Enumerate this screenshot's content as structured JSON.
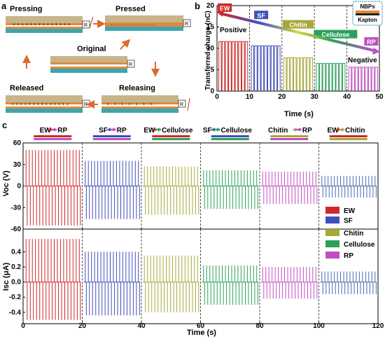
{
  "panel_a": {
    "label": "a",
    "states": {
      "pressing": "Pressing",
      "pressed": "Pressed",
      "original": "Original",
      "released": "Released",
      "releasing": "Releasing"
    },
    "resistor": "R"
  },
  "chart_data": [
    {
      "panel": "b",
      "type": "line",
      "xlabel": "Time (s)",
      "ylabel": "Transferred charge (nC)",
      "xlim": [
        0,
        50
      ],
      "ylim": [
        0,
        20
      ],
      "xticks": [
        "0",
        "10",
        "20",
        "30",
        "40",
        "50"
      ],
      "yticks": [
        "0",
        "5",
        "10",
        "15",
        "20"
      ],
      "grid": false,
      "series_tags": [
        {
          "label": "EW",
          "color": "#cc2a2a"
        },
        {
          "label": "SF",
          "color": "#4050b8"
        },
        {
          "label": "Chitin",
          "color": "#a7a73a"
        },
        {
          "label": "Cellulose",
          "color": "#2ca05a"
        },
        {
          "label": "RP",
          "color": "#c050c0"
        }
      ],
      "series": [
        {
          "label": "EW",
          "x_range": [
            0,
            10
          ],
          "peak": 11.6,
          "color": "#cc2a2a"
        },
        {
          "label": "SF",
          "x_range": [
            10,
            20
          ],
          "peak": 10.6,
          "color": "#4050b8"
        },
        {
          "label": "Chitin",
          "x_range": [
            20,
            30
          ],
          "peak": 7.8,
          "color": "#a7a73a"
        },
        {
          "label": "Cellulose",
          "x_range": [
            30,
            40
          ],
          "peak": 6.5,
          "color": "#2ca05a"
        },
        {
          "label": "RP",
          "x_range": [
            40,
            50
          ],
          "peak": 5.6,
          "color": "#c050c0"
        }
      ],
      "annotations": {
        "positive": "Positive",
        "negative": "Negative"
      },
      "inset": {
        "top": "NBPs",
        "bottom": "Kapton"
      }
    },
    {
      "panel": "c",
      "type": "line",
      "xlabel": "Time (s)",
      "xlim": [
        0,
        120
      ],
      "xticks": [
        "0",
        "20",
        "40",
        "60",
        "80",
        "100",
        "120"
      ],
      "pairs": [
        {
          "left": "EW",
          "right": "RP",
          "left_color": "#cc2a2a",
          "right_color": "#c050c0",
          "x_range": [
            0,
            20
          ],
          "color": "#cc2a2a"
        },
        {
          "left": "SF",
          "right": "RP",
          "left_color": "#4050b8",
          "right_color": "#c050c0",
          "x_range": [
            20,
            40
          ],
          "color": "#4050b8"
        },
        {
          "left": "EW",
          "right": "Cellulose",
          "left_color": "#cc2a2a",
          "right_color": "#2ca05a",
          "x_range": [
            40,
            60
          ],
          "color": "#a7a73a"
        },
        {
          "left": "SF",
          "right": "Cellulose",
          "left_color": "#4050b8",
          "right_color": "#2ca05a",
          "x_range": [
            60,
            80
          ],
          "color": "#2ca05a"
        },
        {
          "left": "Chitin",
          "right": "RP",
          "left_color": "#a7a73a",
          "right_color": "#c050c0",
          "x_range": [
            80,
            100
          ],
          "color": "#c050c0"
        },
        {
          "left": "EW",
          "right": "Chitin",
          "left_color": "#cc2a2a",
          "right_color": "#a7a73a",
          "x_range": [
            100,
            120
          ],
          "color": "#4a6bb0"
        }
      ],
      "voc": {
        "ylabel": "Voc (V)",
        "ylim": [
          -60,
          60
        ],
        "yticks": [
          "60",
          "30",
          "0",
          "-30",
          "-60"
        ],
        "amplitudes": [
          {
            "pos": 50,
            "neg": -55
          },
          {
            "pos": 35,
            "neg": -46
          },
          {
            "pos": 27,
            "neg": -40
          },
          {
            "pos": 22,
            "neg": -32
          },
          {
            "pos": 20,
            "neg": -25
          },
          {
            "pos": 14,
            "neg": -16
          }
        ]
      },
      "isc": {
        "ylabel": "Isc (μA)",
        "ylim": [
          -0.55,
          0.7
        ],
        "yticks": [
          "0.4",
          "0.2",
          "0.0",
          "-0.2",
          "-0.4"
        ],
        "amplitudes": [
          {
            "pos": 0.57,
            "neg": -0.5
          },
          {
            "pos": 0.4,
            "neg": -0.44
          },
          {
            "pos": 0.35,
            "neg": -0.4
          },
          {
            "pos": 0.22,
            "neg": -0.3
          },
          {
            "pos": 0.2,
            "neg": -0.22
          },
          {
            "pos": 0.14,
            "neg": -0.16
          }
        ]
      },
      "legend": [
        {
          "label": "EW",
          "color": "#cc2a2a"
        },
        {
          "label": "SF",
          "color": "#4050b8"
        },
        {
          "label": "Chitin",
          "color": "#a7a73a"
        },
        {
          "label": "Cellulose",
          "color": "#2ca05a"
        },
        {
          "label": "RP",
          "color": "#c050c0"
        }
      ]
    }
  ],
  "labels": {
    "b": "b",
    "c": "c"
  }
}
